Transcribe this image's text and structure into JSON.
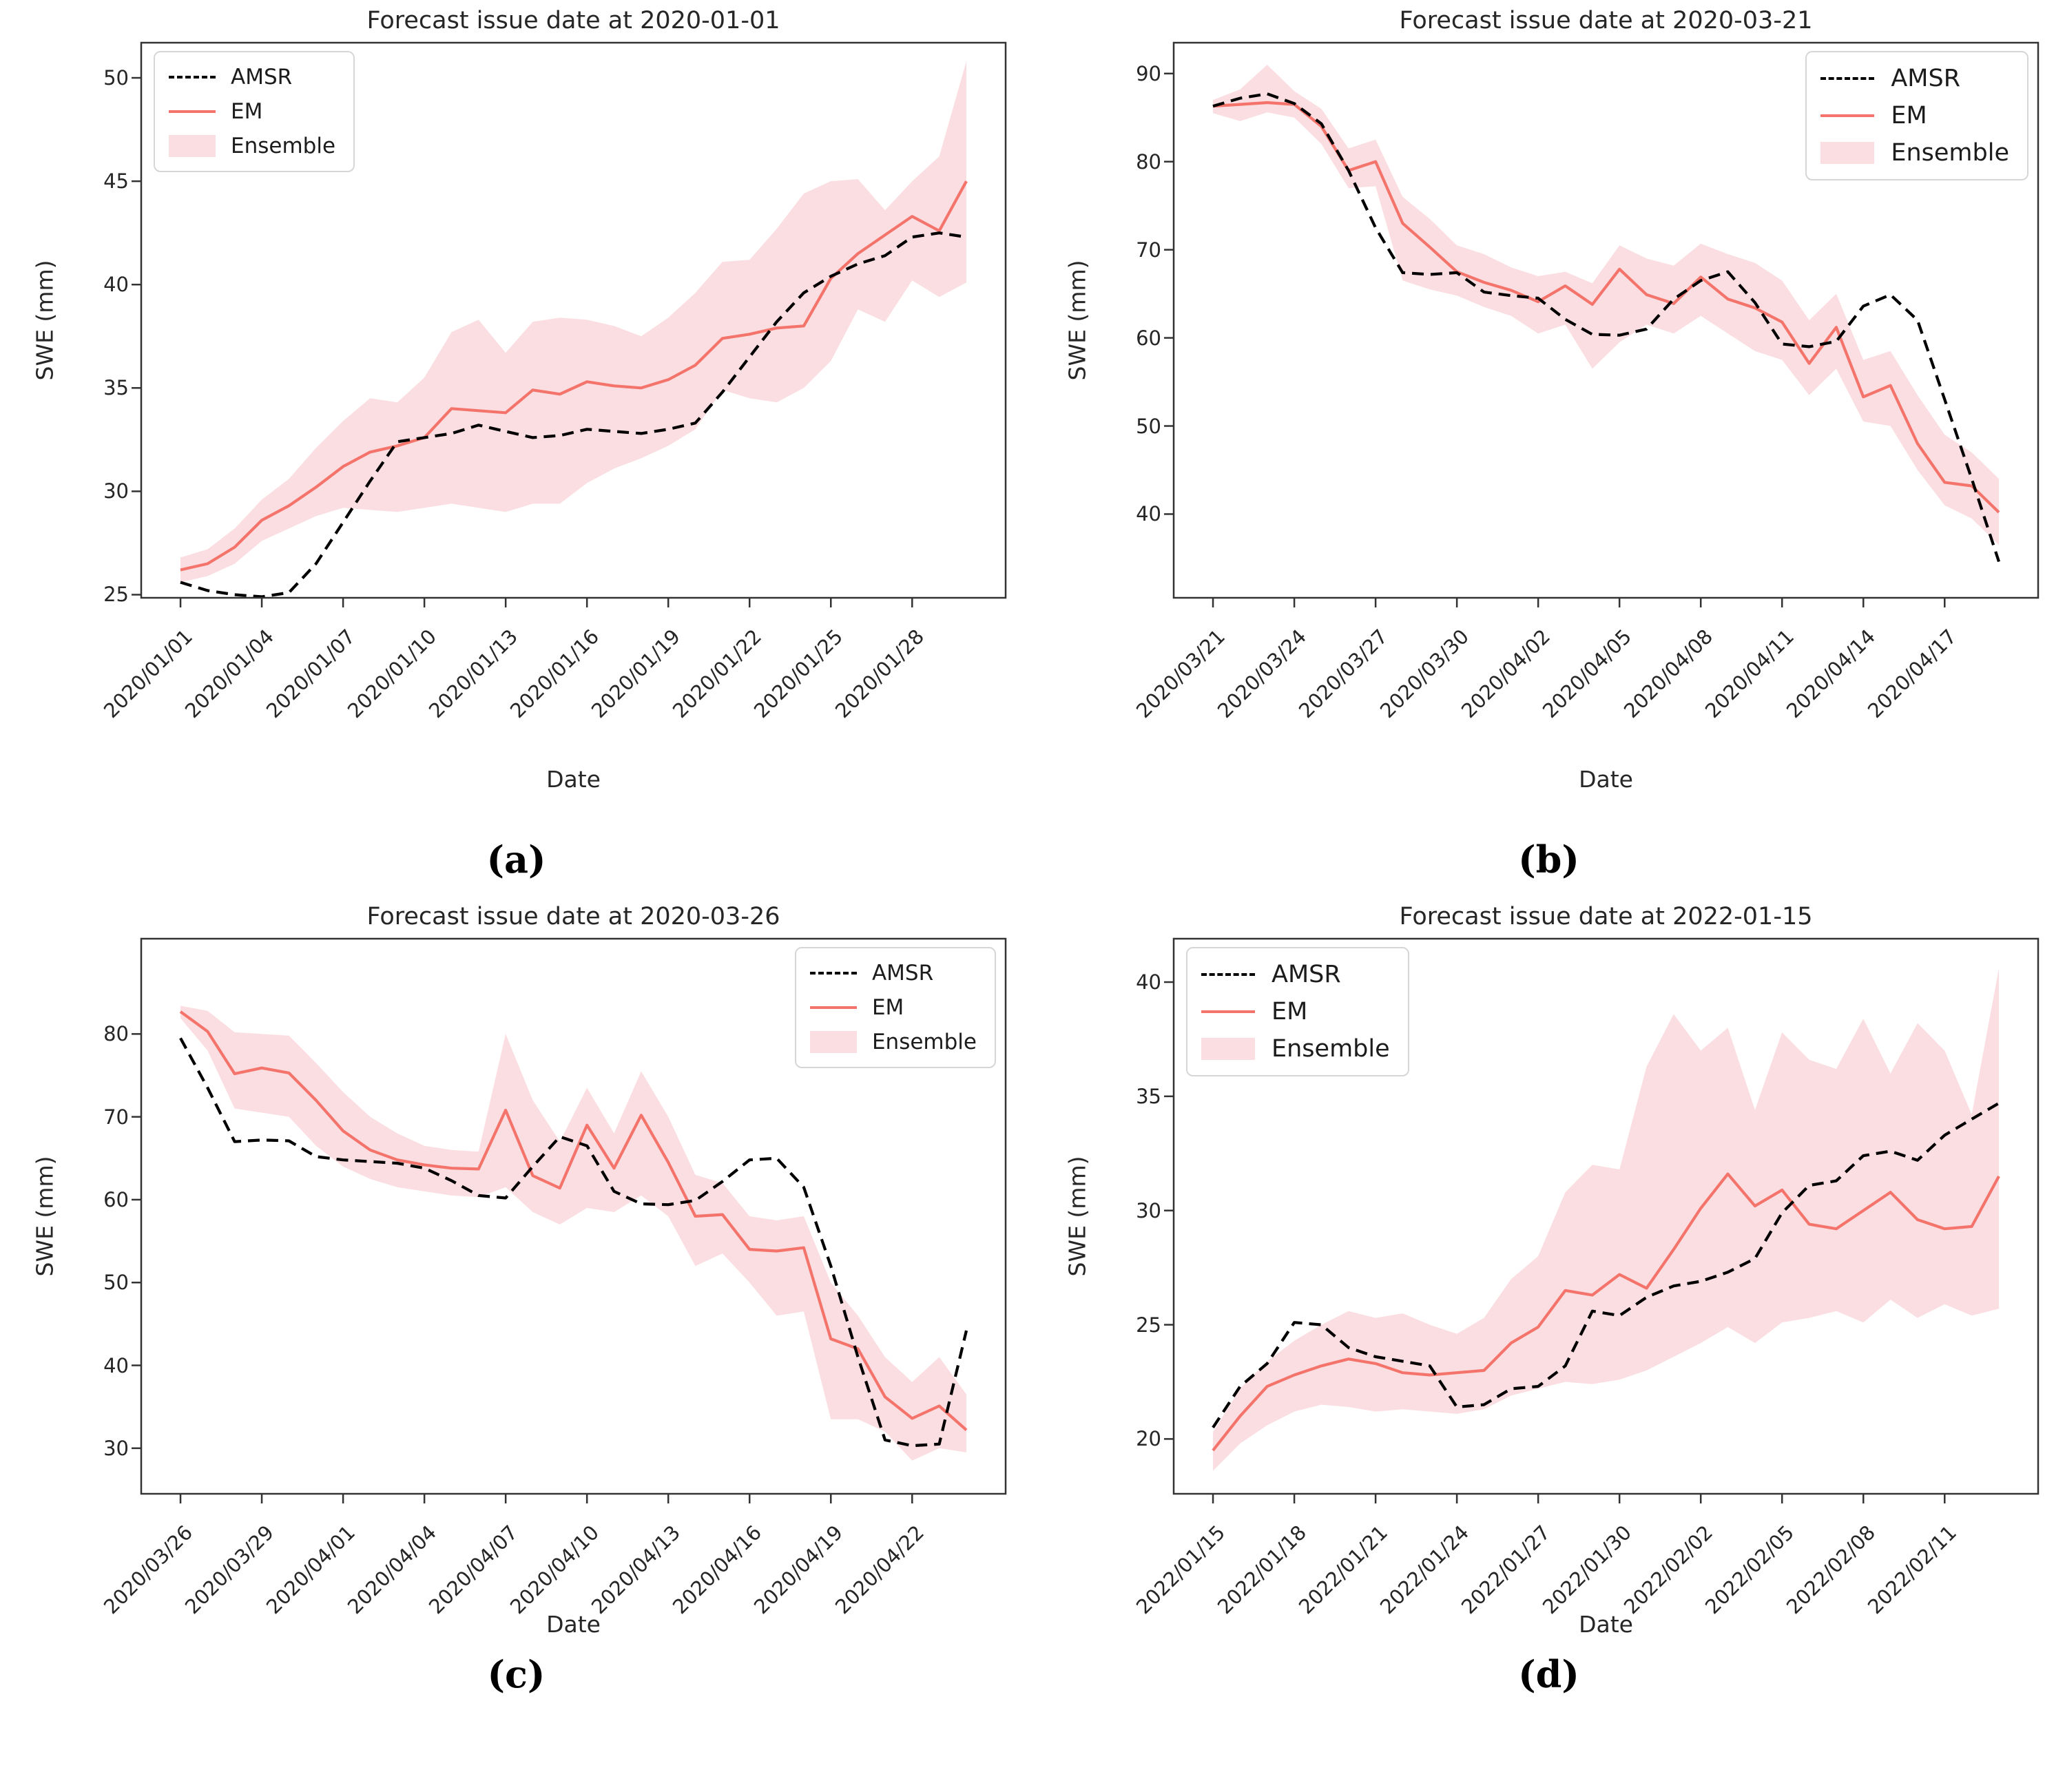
{
  "colors": {
    "em_line": "#f4746c",
    "ensemble_fill": "#fbdee1",
    "amsr_line": "#000000",
    "spine": "#333333",
    "background": "#ffffff"
  },
  "legend": {
    "items": [
      {
        "label": "AMSR",
        "style": "dashed-line"
      },
      {
        "label": "EM",
        "style": "solid-line"
      },
      {
        "label": "Ensemble",
        "style": "filled-band"
      }
    ]
  },
  "chart_data": [
    {
      "type": "line",
      "title": "Forecast issue date at 2020-01-01",
      "xlabel": "Date",
      "ylabel": "SWE (mm)",
      "caption": "(a)",
      "legend_position": "top-left",
      "ylim": [
        24.85,
        51.7
      ],
      "yticks": [
        25,
        30,
        35,
        40,
        45,
        50
      ],
      "x_ticklabels": [
        "2020/01/01",
        "2020/01/04",
        "2020/01/07",
        "2020/01/10",
        "2020/01/13",
        "2020/01/16",
        "2020/01/19",
        "2020/01/22",
        "2020/01/25",
        "2020/01/28"
      ],
      "x_tick_indices": [
        0,
        3,
        6,
        9,
        12,
        15,
        18,
        21,
        24,
        27
      ],
      "n_points": 30,
      "series": {
        "amsr": {
          "name": "AMSR",
          "values": [
            25.6,
            25.2,
            25.0,
            24.9,
            25.1,
            26.5,
            28.5,
            30.5,
            32.4,
            32.6,
            32.8,
            33.2,
            32.9,
            32.6,
            32.7,
            33.0,
            32.9,
            32.8,
            33.0,
            33.3,
            34.8,
            36.5,
            38.2,
            39.6,
            40.4,
            41.0,
            41.4,
            42.3,
            42.5,
            42.3
          ]
        },
        "em": {
          "name": "EM",
          "values": [
            26.2,
            26.5,
            27.3,
            28.6,
            29.3,
            30.2,
            31.2,
            31.9,
            32.2,
            32.6,
            34.0,
            33.9,
            33.8,
            34.9,
            34.7,
            35.3,
            35.1,
            35.0,
            35.4,
            36.1,
            37.4,
            37.6,
            37.9,
            38.0,
            40.3,
            41.5,
            42.4,
            43.3,
            42.6,
            45.0
          ]
        },
        "ensemble": {
          "name": "Ensemble",
          "lower": [
            25.6,
            25.9,
            26.5,
            27.6,
            28.2,
            28.8,
            29.2,
            29.1,
            29.0,
            29.2,
            29.4,
            29.2,
            29.0,
            29.4,
            29.4,
            30.4,
            31.1,
            31.6,
            32.2,
            33.0,
            34.9,
            34.5,
            34.3,
            35.0,
            36.3,
            38.8,
            38.2,
            40.2,
            39.4,
            40.1
          ],
          "upper": [
            26.8,
            27.2,
            28.2,
            29.6,
            30.6,
            32.1,
            33.4,
            34.5,
            34.3,
            35.5,
            37.7,
            38.3,
            36.7,
            38.2,
            38.4,
            38.3,
            38.0,
            37.5,
            38.4,
            39.6,
            41.1,
            41.2,
            42.7,
            44.4,
            45.0,
            45.1,
            43.6,
            45.0,
            46.2,
            50.8
          ]
        }
      }
    },
    {
      "type": "line",
      "title": "Forecast issue date at 2020-03-21",
      "xlabel": "Date",
      "ylabel": "SWE (mm)",
      "caption": "(b)",
      "legend_position": "top-right",
      "ylim": [
        30.5,
        93.5
      ],
      "yticks": [
        40,
        50,
        60,
        70,
        80,
        90
      ],
      "x_ticklabels": [
        "2020/03/21",
        "2020/03/24",
        "2020/03/27",
        "2020/03/30",
        "2020/04/02",
        "2020/04/05",
        "2020/04/08",
        "2020/04/11",
        "2020/04/14",
        "2020/04/17"
      ],
      "x_tick_indices": [
        0,
        3,
        6,
        9,
        12,
        15,
        18,
        21,
        24,
        27
      ],
      "n_points": 30,
      "series": {
        "amsr": {
          "name": "AMSR",
          "values": [
            86.3,
            87.2,
            87.7,
            86.6,
            84.3,
            79.0,
            72.5,
            67.4,
            67.2,
            67.4,
            65.2,
            64.8,
            64.5,
            62.1,
            60.4,
            60.3,
            61.0,
            64.4,
            66.5,
            67.5,
            64.0,
            59.3,
            59.0,
            59.6,
            63.6,
            64.9,
            62.0,
            53.0,
            44.0,
            34.6
          ]
        },
        "em": {
          "name": "EM",
          "values": [
            86.3,
            86.5,
            86.7,
            86.5,
            84.0,
            79.0,
            80.0,
            73.0,
            70.3,
            67.5,
            66.3,
            65.4,
            64.1,
            65.9,
            63.8,
            67.8,
            64.9,
            63.9,
            66.9,
            64.4,
            63.4,
            61.8,
            57.1,
            61.2,
            53.3,
            54.6,
            48.0,
            43.6,
            43.2,
            40.2
          ]
        },
        "ensemble": {
          "name": "Ensemble",
          "lower": [
            85.5,
            84.6,
            85.6,
            85.0,
            82.0,
            77.0,
            77.2,
            66.5,
            65.5,
            64.8,
            63.5,
            62.5,
            60.5,
            61.5,
            56.5,
            59.5,
            61.5,
            60.5,
            62.5,
            60.5,
            58.5,
            57.5,
            53.5,
            56.5,
            50.5,
            50.0,
            45.0,
            41.0,
            39.5,
            36.5
          ],
          "upper": [
            87.0,
            88.2,
            91.0,
            88.0,
            86.0,
            81.5,
            82.5,
            76.0,
            73.5,
            70.5,
            69.5,
            68.0,
            67.0,
            67.5,
            66.2,
            70.5,
            69.0,
            68.2,
            70.7,
            69.5,
            68.5,
            66.5,
            62.0,
            65.0,
            57.5,
            58.5,
            53.5,
            49.0,
            47.0,
            44.0
          ]
        }
      }
    },
    {
      "type": "line",
      "title": "Forecast issue date at 2020-03-26",
      "xlabel": "Date",
      "ylabel": "SWE (mm)",
      "caption": "(c)",
      "legend_position": "top-right",
      "ylim": [
        24.5,
        91.5
      ],
      "yticks": [
        30,
        40,
        50,
        60,
        70,
        80
      ],
      "x_ticklabels": [
        "2020/03/26",
        "2020/03/29",
        "2020/04/01",
        "2020/04/04",
        "2020/04/07",
        "2020/04/10",
        "2020/04/13",
        "2020/04/16",
        "2020/04/19",
        "2020/04/22"
      ],
      "x_tick_indices": [
        0,
        3,
        6,
        9,
        12,
        15,
        18,
        21,
        24,
        27
      ],
      "n_points": 30,
      "series": {
        "amsr": {
          "name": "AMSR",
          "values": [
            79.5,
            73.5,
            67.0,
            67.2,
            67.1,
            65.2,
            64.8,
            64.6,
            64.4,
            63.8,
            62.3,
            60.5,
            60.2,
            64.0,
            67.6,
            66.5,
            61.0,
            59.5,
            59.4,
            59.9,
            62.2,
            64.8,
            65.0,
            61.5,
            52.0,
            41.0,
            31.0,
            30.3,
            30.5,
            44.2
          ]
        },
        "em": {
          "name": "EM",
          "values": [
            82.7,
            80.3,
            75.2,
            75.9,
            75.3,
            72.0,
            68.3,
            66.0,
            64.8,
            64.2,
            63.8,
            63.7,
            70.8,
            62.9,
            61.4,
            69.0,
            63.8,
            70.2,
            64.5,
            58.0,
            58.2,
            54.0,
            53.8,
            54.2,
            43.2,
            42.0,
            36.2,
            33.6,
            35.1,
            32.2
          ]
        },
        "ensemble": {
          "name": "Ensemble",
          "lower": [
            81.9,
            78.0,
            71.0,
            70.5,
            70.0,
            66.5,
            64.0,
            62.5,
            61.5,
            61.0,
            60.5,
            60.3,
            61.5,
            58.5,
            57.0,
            59.0,
            58.5,
            60.5,
            58.0,
            52.0,
            53.5,
            50.0,
            46.0,
            46.5,
            33.5,
            33.5,
            32.0,
            28.5,
            30.0,
            29.5
          ],
          "upper": [
            83.4,
            82.8,
            80.2,
            80.0,
            79.8,
            76.5,
            73.0,
            70.0,
            68.0,
            66.5,
            66.0,
            65.8,
            80.0,
            72.0,
            67.0,
            73.5,
            68.0,
            75.5,
            70.0,
            63.0,
            62.0,
            58.0,
            57.5,
            58.0,
            50.0,
            46.0,
            41.0,
            38.0,
            41.0,
            36.5
          ]
        }
      }
    },
    {
      "type": "line",
      "title": "Forecast issue date at 2022-01-15",
      "xlabel": "Date",
      "ylabel": "SWE (mm)",
      "caption": "(d)",
      "legend_position": "top-left",
      "ylim": [
        17.6,
        41.9
      ],
      "yticks": [
        20,
        25,
        30,
        35,
        40
      ],
      "x_ticklabels": [
        "2022/01/15",
        "2022/01/18",
        "2022/01/21",
        "2022/01/24",
        "2022/01/27",
        "2022/01/30",
        "2022/02/02",
        "2022/02/05",
        "2022/02/08",
        "2022/02/11"
      ],
      "x_tick_indices": [
        0,
        3,
        6,
        9,
        12,
        15,
        18,
        21,
        24,
        27
      ],
      "n_points": 30,
      "series": {
        "amsr": {
          "name": "AMSR",
          "values": [
            20.5,
            22.3,
            23.3,
            25.1,
            25.0,
            24.0,
            23.6,
            23.4,
            23.2,
            21.4,
            21.5,
            22.2,
            22.3,
            23.2,
            25.6,
            25.4,
            26.2,
            26.7,
            26.9,
            27.3,
            27.9,
            29.9,
            31.1,
            31.3,
            32.4,
            32.6,
            32.2,
            33.3,
            34.0,
            34.7
          ]
        },
        "em": {
          "name": "EM",
          "values": [
            19.5,
            21.0,
            22.3,
            22.8,
            23.2,
            23.5,
            23.3,
            22.9,
            22.8,
            22.9,
            23.0,
            24.2,
            24.9,
            26.5,
            26.3,
            27.2,
            26.6,
            28.3,
            30.1,
            31.6,
            30.2,
            30.9,
            29.4,
            29.2,
            30.0,
            30.8,
            29.6,
            29.2,
            29.3,
            31.5
          ]
        },
        "ensemble": {
          "name": "Ensemble",
          "lower": [
            18.6,
            19.8,
            20.6,
            21.2,
            21.5,
            21.4,
            21.2,
            21.3,
            21.2,
            21.1,
            21.3,
            21.9,
            22.2,
            22.5,
            22.4,
            22.6,
            23.0,
            23.6,
            24.2,
            24.9,
            24.2,
            25.1,
            25.3,
            25.6,
            25.1,
            26.1,
            25.3,
            25.9,
            25.4,
            25.7
          ],
          "upper": [
            20.3,
            22.2,
            23.4,
            24.3,
            25.0,
            25.6,
            25.3,
            25.5,
            25.0,
            24.6,
            25.3,
            27.0,
            28.0,
            30.8,
            32.0,
            31.8,
            36.3,
            38.6,
            37.0,
            38.0,
            34.4,
            37.8,
            36.6,
            36.2,
            38.4,
            36.0,
            38.2,
            37.0,
            34.2,
            40.6
          ]
        }
      }
    }
  ]
}
